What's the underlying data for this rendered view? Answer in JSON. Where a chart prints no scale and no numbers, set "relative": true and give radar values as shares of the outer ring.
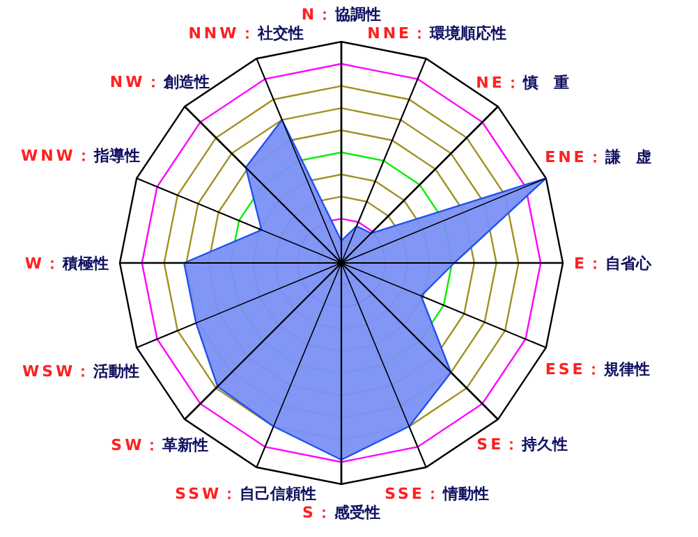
{
  "chart_data": {
    "type": "radar",
    "relative": true,
    "grid": true,
    "categories": [
      "N：協調性",
      "NNE：環境順応性",
      "NE：慎　重",
      "ENE：謙　虚",
      "E：自省心",
      "ESE：規律性",
      "SE：持久性",
      "SSE：情動性",
      "S：感受性",
      "SSW：自己信頼性",
      "SW：革新性",
      "WSW：活動性",
      "W：積極性",
      "WNW：指導性",
      "NW：創造性",
      "NNW：社交性"
    ],
    "series": [
      {
        "color": "#7b90f5",
        "values": [
          0.1,
          0.18,
          0.19,
          1.0,
          0.51,
          0.39,
          0.7,
          0.8,
          0.89,
          0.8,
          0.79,
          0.71,
          0.71,
          0.39,
          0.61,
          0.7
        ]
      }
    ]
  }
}
